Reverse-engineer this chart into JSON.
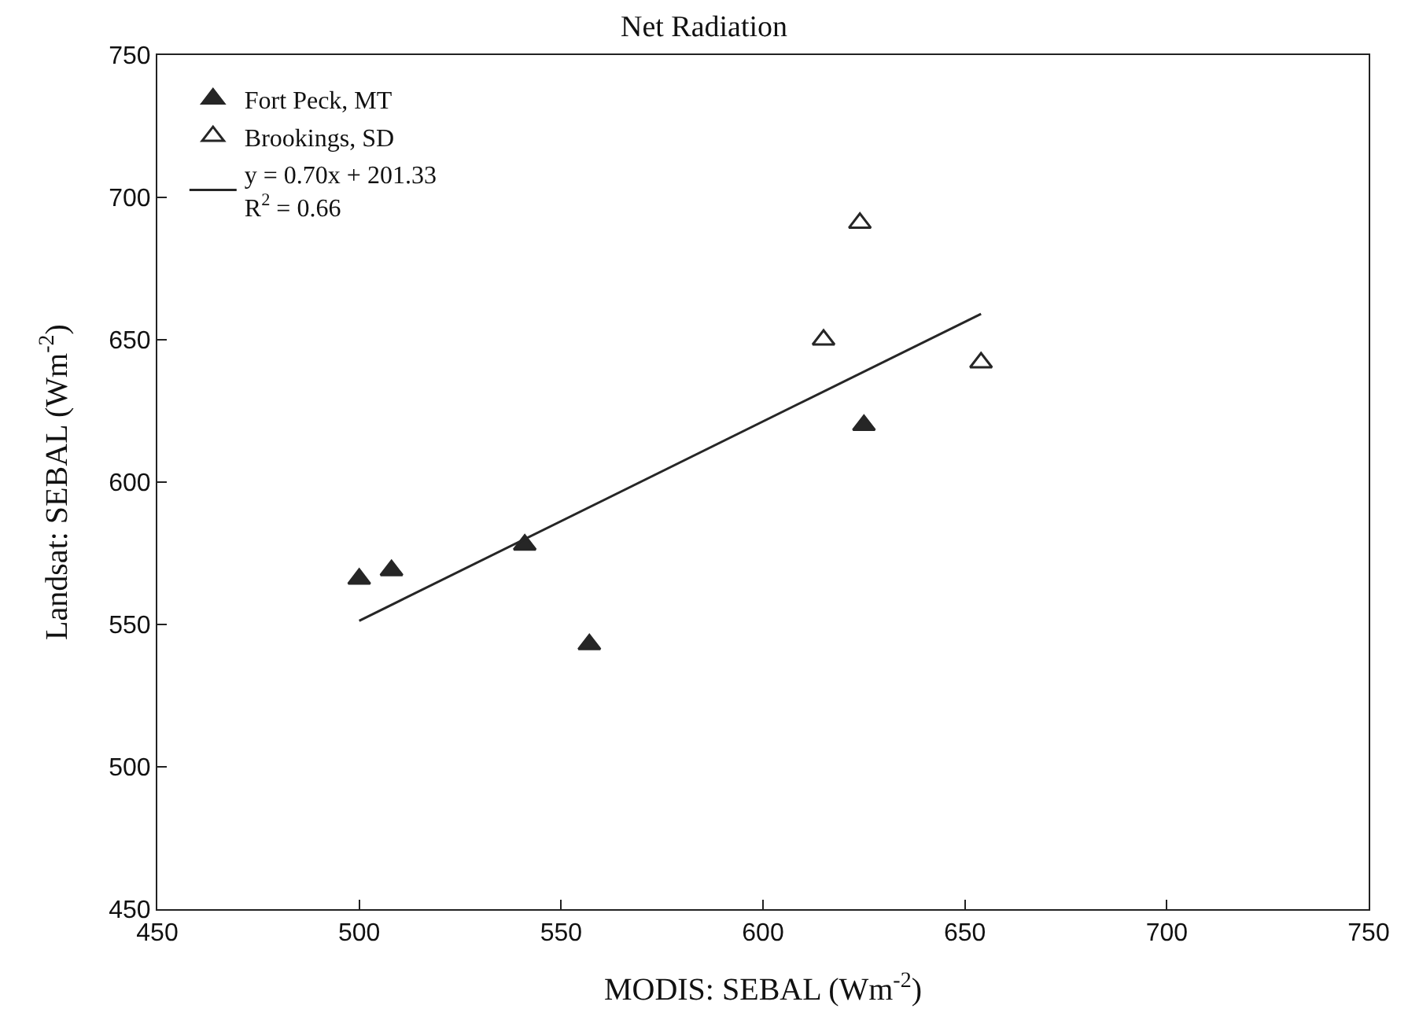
{
  "chart_data": {
    "type": "scatter",
    "title": "Net Radiation",
    "xlabel": "MODIS: SEBAL (Wm$^{-2}$)",
    "ylabel": "Landsat: SEBAL (Wm$^{-2}$)",
    "xlim": [
      450,
      750
    ],
    "xticks": [
      450,
      500,
      550,
      600,
      650,
      700,
      750
    ],
    "ylim": [
      450,
      750
    ],
    "yticks": [
      450,
      500,
      550,
      600,
      650,
      700,
      750
    ],
    "grid": false,
    "legend": "top left",
    "series": [
      {
        "name": "Fort Peck, MT",
        "color": "#262626",
        "marker": "triangle",
        "x": [
          500,
          508,
          541,
          557,
          625
        ],
        "values": [
          566,
          569,
          578,
          543,
          620
        ]
      },
      {
        "name": "Brookings, SD",
        "color": "#ffffff",
        "marker": "triangle",
        "x": [
          615,
          624,
          654
        ],
        "values": [
          650,
          691,
          642
        ]
      },
      {
        "name": "y = 0.70x + 201.33\nR$^{2}$ = 0.66",
        "type": "line",
        "color": "#262626",
        "line_style": "solid",
        "marker": "none",
        "x": [
          500,
          654
        ],
        "values": [
          551.3,
          659.1
        ]
      }
    ]
  }
}
